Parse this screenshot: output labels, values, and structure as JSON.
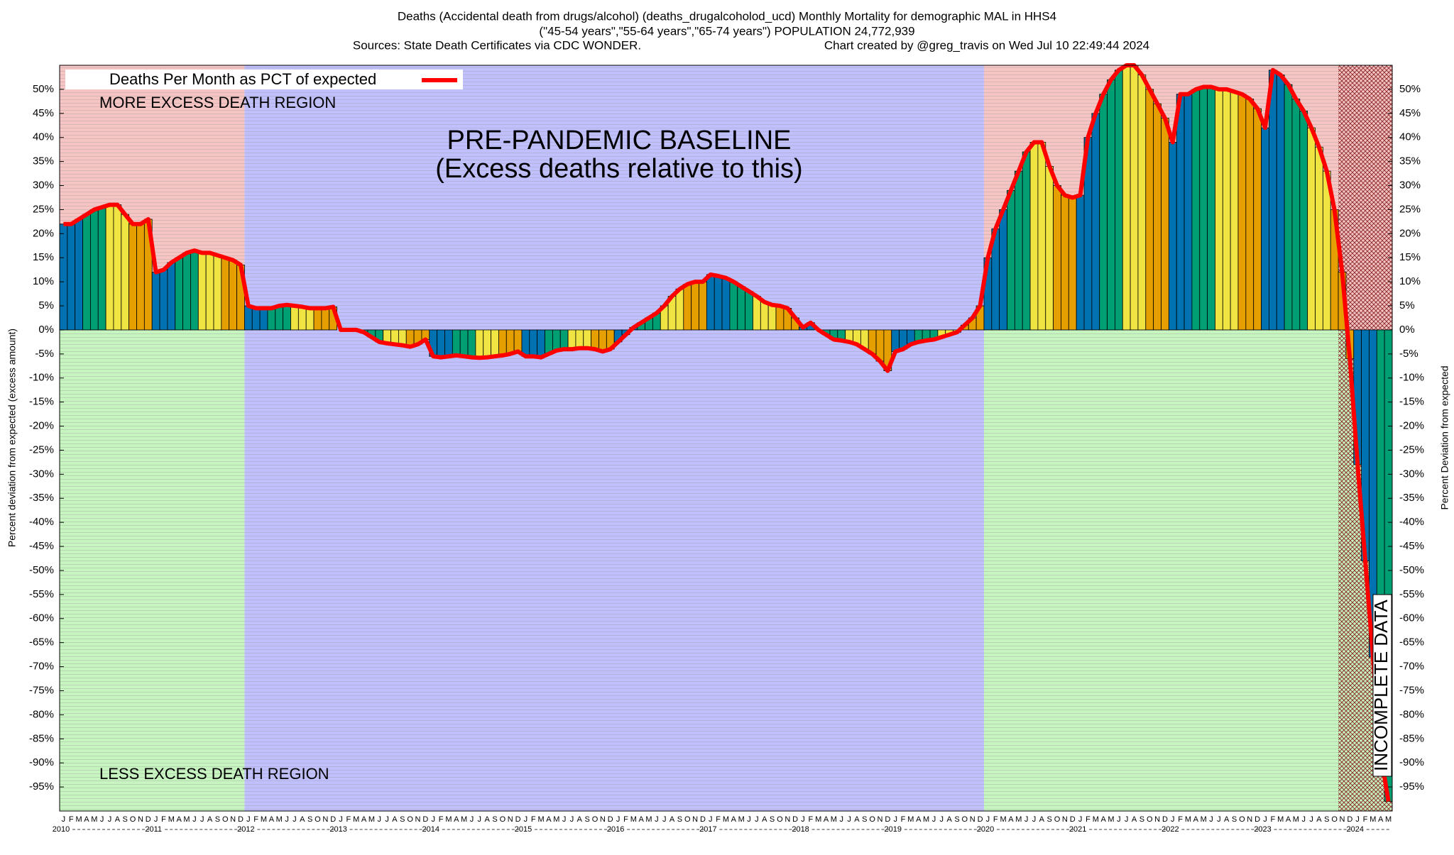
{
  "chart_data": {
    "type": "bar",
    "title": "Deaths (Accidental death from drugs/alcohol) (deaths_drugalcoholod_ucd) Monthly Mortality for demographic MAL in HHS4",
    "subtitle": "(\"45-54 years\",\"55-64 years\",\"65-74 years\") POPULATION 24,772,939",
    "source": "Sources: State Death Certificates via CDC WONDER.",
    "credit": "Chart created by @greg_travis on Wed Jul 10 22:49:44 2024",
    "y_label": "Percent deviation from expected (excess amount)",
    "y2_label": "Percent Deviation from expected",
    "annotations": [
      "MORE EXCESS DEATH REGION",
      "LESS EXCESS DEATH REGION",
      "PRE-PANDEMIC BASELINE",
      "(Excess deaths relative to this)",
      "INCOMPLETE DATA"
    ],
    "years": [
      "2010",
      "2011",
      "2012",
      "2013",
      "2014",
      "2015",
      "2016",
      "2017",
      "2018",
      "2019",
      "2020",
      "2021",
      "2022",
      "2023",
      "2024"
    ],
    "categories": [
      "J",
      "F",
      "M",
      "A",
      "M",
      "J",
      "J",
      "A",
      "S",
      "O",
      "N",
      "D",
      "J",
      "F",
      "M",
      "A",
      "M",
      "J",
      "J",
      "A",
      "S",
      "O",
      "N",
      "D",
      "J",
      "F",
      "M",
      "A",
      "M",
      "J",
      "J",
      "A",
      "S",
      "O",
      "N",
      "D",
      "J",
      "F",
      "M",
      "A",
      "M",
      "J",
      "J",
      "A",
      "S",
      "O",
      "N",
      "D",
      "J",
      "F",
      "M",
      "A",
      "M",
      "J",
      "J",
      "A",
      "S",
      "O",
      "N",
      "D",
      "J",
      "F",
      "M",
      "A",
      "M",
      "J",
      "J",
      "A",
      "S",
      "O",
      "N",
      "D",
      "J",
      "F",
      "M",
      "A",
      "M",
      "J",
      "J",
      "A",
      "S",
      "O",
      "N",
      "D",
      "J",
      "F",
      "M",
      "A",
      "M",
      "J",
      "J",
      "A",
      "S",
      "O",
      "N",
      "D",
      "J",
      "F",
      "M",
      "A",
      "M",
      "J",
      "J",
      "A",
      "S",
      "O",
      "N",
      "D",
      "J",
      "F",
      "M",
      "A",
      "M",
      "J",
      "J",
      "A",
      "S",
      "O",
      "N",
      "D",
      "J",
      "F",
      "M",
      "A",
      "M",
      "J",
      "J",
      "A",
      "S",
      "O",
      "N",
      "D",
      "J",
      "F",
      "M",
      "A",
      "M",
      "J",
      "J",
      "A",
      "S",
      "O",
      "N",
      "D",
      "J",
      "F",
      "M",
      "A",
      "M",
      "J",
      "J",
      "A",
      "S",
      "O",
      "N",
      "D",
      "J",
      "F",
      "M",
      "A",
      "M",
      "J",
      "J",
      "A",
      "S",
      "O",
      "N",
      "D",
      "J",
      "F",
      "M",
      "A",
      "M"
    ],
    "series": [
      {
        "name": "Deaths Per Month as PCT of expected",
        "color": "#ff0000",
        "values": [
          22,
          22,
          23,
          24,
          25,
          25.5,
          26,
          26,
          24,
          22,
          22,
          23,
          12,
          12.5,
          14,
          15,
          16,
          16.5,
          16,
          16,
          15.5,
          15,
          14.5,
          13.5,
          5,
          4.5,
          4.5,
          4.5,
          5,
          5.2,
          5,
          4.8,
          4.5,
          4.5,
          4.5,
          4.8,
          0,
          0,
          0,
          -0.5,
          -1.5,
          -2.5,
          -2.8,
          -3,
          -3.2,
          -3.5,
          -3,
          -2,
          -5.5,
          -5.7,
          -5.5,
          -5.3,
          -5.5,
          -5.7,
          -5.8,
          -5.7,
          -5.5,
          -5.3,
          -5,
          -4.5,
          -5.5,
          -5.5,
          -5.7,
          -5,
          -4.3,
          -4,
          -4,
          -3.8,
          -3.8,
          -4,
          -4.5,
          -4,
          -2.5,
          -1,
          0.5,
          1.5,
          2.5,
          3.5,
          5,
          7,
          8.5,
          9.5,
          10,
          10,
          11.5,
          11.2,
          10.8,
          10,
          9,
          8,
          7,
          5.8,
          5.2,
          5,
          4.5,
          2.5,
          0.5,
          1.5,
          0,
          -1,
          -2,
          -2.2,
          -2.5,
          -3,
          -4,
          -5,
          -6.5,
          -8.5,
          -4.5,
          -4,
          -3,
          -2.5,
          -2.2,
          -2,
          -1.5,
          -1,
          -0.5,
          1,
          2.5,
          5,
          15,
          21,
          25,
          29,
          33,
          37,
          39,
          39,
          34,
          30,
          28,
          27.5,
          28,
          40,
          45,
          49,
          52,
          54,
          55,
          55,
          53,
          50,
          47,
          44,
          39,
          49,
          49,
          50,
          50.5,
          50.5,
          50,
          50,
          49.5,
          49,
          48,
          46,
          42,
          54,
          53,
          51,
          48,
          45.5,
          42,
          38,
          33,
          25,
          12,
          -6,
          -28,
          -48,
          -68,
          -88,
          -98
        ]
      }
    ],
    "bar_colors": [
      "#0072b2",
      "#009e73",
      "#f0e442",
      "#e69f00"
    ],
    "region_colors": {
      "more": "#f7c4c4",
      "less": "#c6f5c0",
      "baseline": "#c0c0ff",
      "incomplete": "#8b2020"
    },
    "ylim": [
      -100,
      55
    ],
    "yticks": [
      {
        "value": -95,
        "label": "-95%"
      },
      {
        "value": -90,
        "label": "-90%"
      },
      {
        "value": -85,
        "label": "-85%"
      },
      {
        "value": -80,
        "label": "-80%"
      },
      {
        "value": -75,
        "label": "-75%"
      },
      {
        "value": -70,
        "label": "-70%"
      },
      {
        "value": -65,
        "label": "-65%"
      },
      {
        "value": -60,
        "label": "-60%"
      },
      {
        "value": -55,
        "label": "-55%"
      },
      {
        "value": -50,
        "label": "-50%"
      },
      {
        "value": -45,
        "label": "-45%"
      },
      {
        "value": -40,
        "label": "-40%"
      },
      {
        "value": -35,
        "label": "-35%"
      },
      {
        "value": -30,
        "label": "-30%"
      },
      {
        "value": -25,
        "label": "-25%"
      },
      {
        "value": -20,
        "label": "-20%"
      },
      {
        "value": -15,
        "label": "-15%"
      },
      {
        "value": -10,
        "label": "-10%"
      },
      {
        "value": -5,
        "label": "-5%"
      },
      {
        "value": 0,
        "label": "0%"
      },
      {
        "value": 5,
        "label": "5%"
      },
      {
        "value": 10,
        "label": "10%"
      },
      {
        "value": 15,
        "label": "15%"
      },
      {
        "value": 20,
        "label": "20%"
      },
      {
        "value": 25,
        "label": "25%"
      },
      {
        "value": 30,
        "label": "30%"
      },
      {
        "value": 35,
        "label": "35%"
      },
      {
        "value": 40,
        "label": "40%"
      },
      {
        "value": 45,
        "label": "45%"
      },
      {
        "value": 50,
        "label": "50%"
      }
    ],
    "legend": "upper left"
  }
}
